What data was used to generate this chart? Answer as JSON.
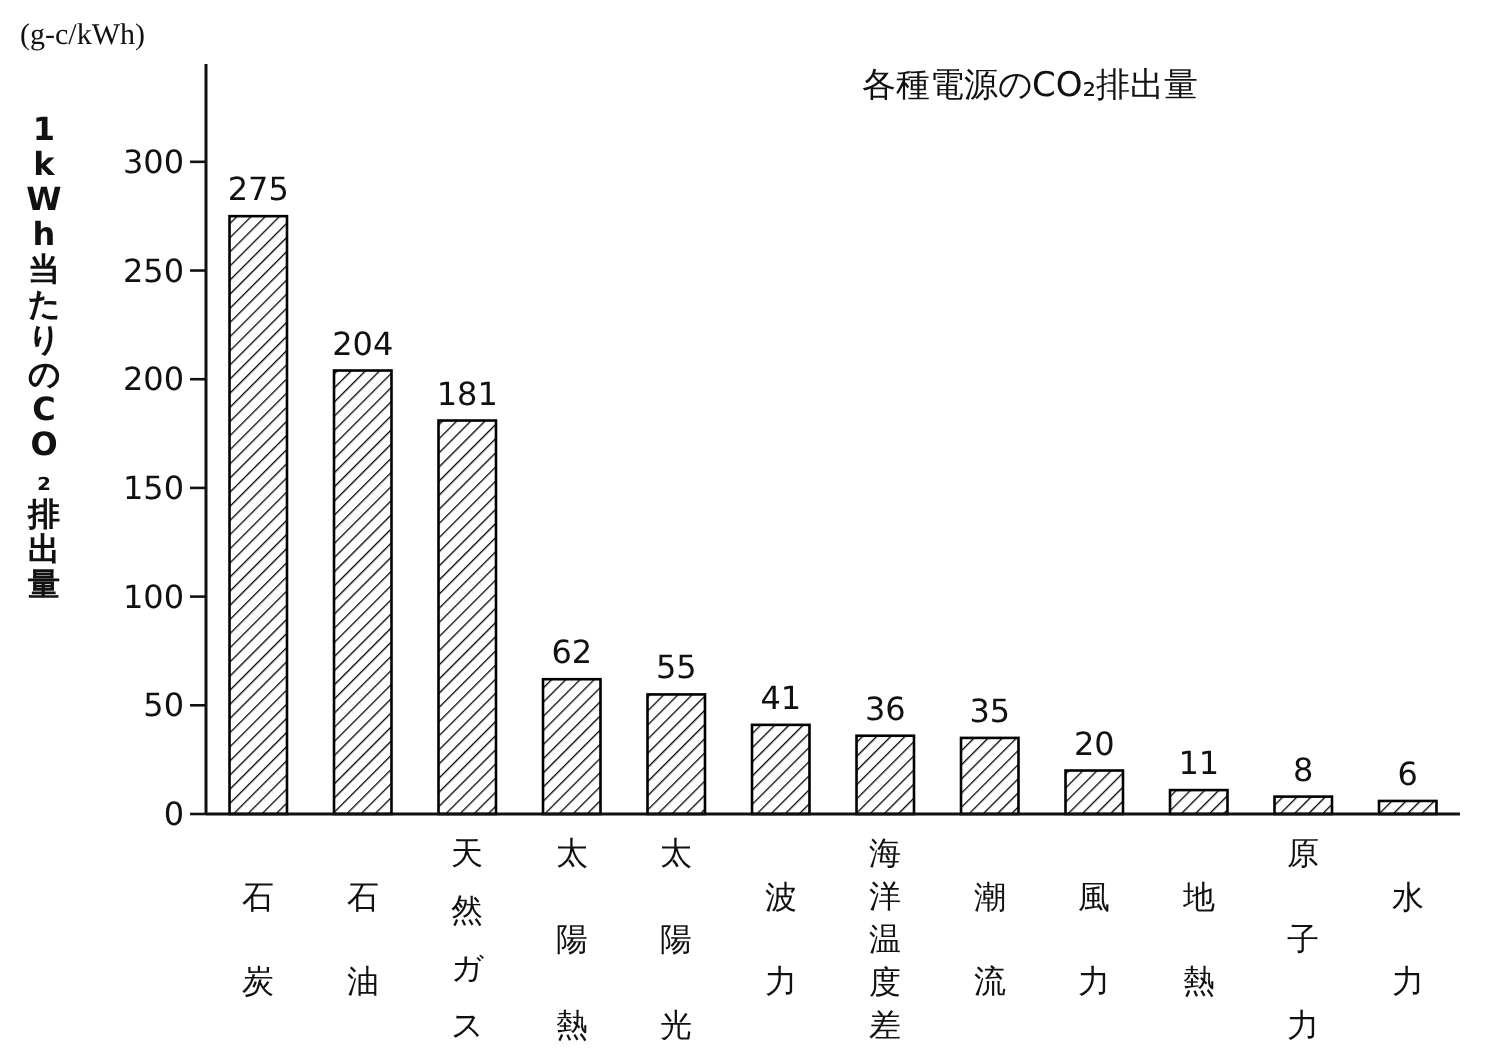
{
  "chart_data": {
    "type": "bar",
    "title": "各種電源のCO₂排出量",
    "ylabel": "1kWh当たりのCO₂排出量",
    "annotations": [
      "(g-c/kWh)"
    ],
    "categories": [
      "石炭",
      "石油",
      "天然ガス",
      "太陽熱",
      "太陽光",
      "波力",
      "海洋温度差",
      "潮流",
      "風力",
      "地熱",
      "原子力",
      "水力"
    ],
    "values": [
      275,
      204,
      181,
      62,
      55,
      41,
      36,
      35,
      20,
      11,
      8,
      6
    ],
    "color": "#000000",
    "data_labels": true,
    "ylim": [
      0,
      345
    ],
    "yticks": [
      0,
      50,
      100,
      150,
      200,
      250,
      300
    ],
    "grid": false
  }
}
